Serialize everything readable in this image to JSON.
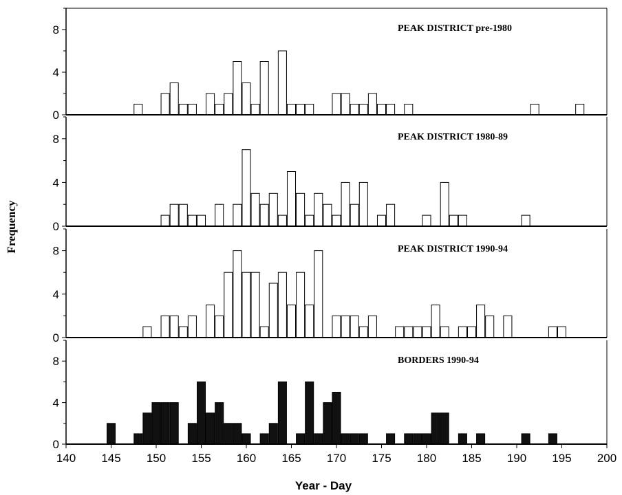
{
  "chart_data": {
    "type": "bar",
    "layout": "stacked-panels",
    "xlabel": "Year - Day",
    "ylabel": "Frequency",
    "xlim": [
      140,
      200
    ],
    "x_ticks": [
      140,
      145,
      150,
      155,
      160,
      165,
      170,
      175,
      180,
      185,
      190,
      195,
      200
    ],
    "x_tick_labels": [
      "140",
      "145",
      "150",
      "155",
      "160",
      "165",
      "170",
      "175",
      "180",
      "185",
      "190",
      "195",
      "200"
    ],
    "y_tick_labels": [
      "0",
      "4",
      "8"
    ],
    "panels": [
      {
        "title": "PEAK DISTRICT pre-1980",
        "fill": "#ffffff",
        "ylim": [
          0,
          10
        ],
        "x": [
          148,
          151,
          152,
          153,
          154,
          156,
          157,
          158,
          159,
          160,
          161,
          162,
          164,
          165,
          166,
          167,
          170,
          171,
          172,
          173,
          174,
          175,
          176,
          178,
          192,
          197
        ],
        "values": [
          1,
          2,
          3,
          1,
          1,
          2,
          1,
          2,
          5,
          3,
          1,
          5,
          6,
          1,
          1,
          1,
          2,
          2,
          1,
          1,
          2,
          1,
          1,
          1,
          1,
          1
        ]
      },
      {
        "title": "PEAK DISTRICT 1980-89",
        "fill": "#ffffff",
        "ylim": [
          0,
          10
        ],
        "x": [
          151,
          152,
          153,
          154,
          155,
          157,
          159,
          160,
          161,
          162,
          163,
          164,
          165,
          166,
          167,
          168,
          169,
          170,
          171,
          172,
          173,
          175,
          176,
          180,
          182,
          183,
          184,
          191
        ],
        "values": [
          1,
          2,
          2,
          1,
          1,
          2,
          2,
          7,
          3,
          2,
          3,
          1,
          5,
          3,
          1,
          3,
          2,
          1,
          4,
          2,
          4,
          1,
          2,
          1,
          4,
          1,
          1,
          1
        ]
      },
      {
        "title": "PEAK DISTRICT 1990-94",
        "fill": "#ffffff",
        "ylim": [
          0,
          10
        ],
        "x": [
          149,
          151,
          152,
          153,
          154,
          156,
          157,
          158,
          159,
          160,
          161,
          162,
          163,
          164,
          165,
          166,
          167,
          168,
          170,
          171,
          172,
          173,
          174,
          177,
          178,
          179,
          180,
          181,
          182,
          184,
          185,
          186,
          187,
          189,
          194,
          195
        ],
        "values": [
          1,
          2,
          2,
          1,
          2,
          3,
          2,
          6,
          8,
          6,
          6,
          1,
          5,
          6,
          3,
          6,
          3,
          8,
          2,
          2,
          2,
          1,
          2,
          1,
          1,
          1,
          1,
          3,
          1,
          1,
          1,
          3,
          2,
          2,
          1,
          1
        ]
      },
      {
        "title": "BORDERS 1990-94",
        "fill": "#111111",
        "ylim": [
          0,
          10
        ],
        "x": [
          145,
          148,
          149,
          150,
          151,
          152,
          154,
          155,
          156,
          157,
          158,
          159,
          160,
          162,
          163,
          164,
          166,
          167,
          168,
          169,
          170,
          171,
          172,
          173,
          176,
          178,
          179,
          180,
          181,
          182,
          184,
          186,
          191,
          194
        ],
        "values": [
          2,
          1,
          3,
          4,
          4,
          4,
          2,
          6,
          3,
          4,
          2,
          2,
          1,
          1,
          2,
          6,
          1,
          6,
          1,
          4,
          5,
          1,
          1,
          1,
          1,
          1,
          1,
          1,
          3,
          3,
          1,
          1,
          1,
          1
        ]
      }
    ]
  }
}
